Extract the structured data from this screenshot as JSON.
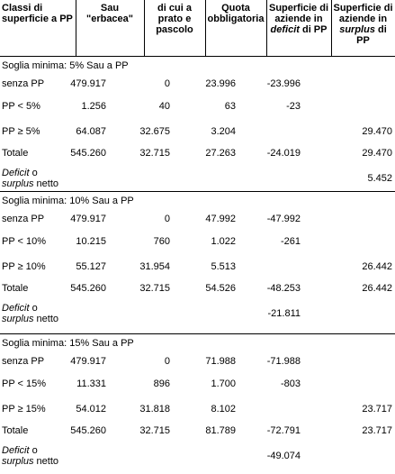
{
  "header": {
    "columns": [
      [
        {
          "text": "Classi di superficie a PP",
          "italic": false
        }
      ],
      [
        {
          "text": "Sau \"erbacea\"",
          "italic": false
        }
      ],
      [
        {
          "text": "di cui a prato e pascolo",
          "italic": false
        }
      ],
      [
        {
          "text": "Quota obbligatoria",
          "italic": false
        }
      ],
      [
        {
          "text": "Superficie di aziende in ",
          "italic": false
        },
        {
          "text": "deficit",
          "italic": true
        },
        {
          "text": " di PP",
          "italic": false
        }
      ],
      [
        {
          "text": "Superficie di aziende in ",
          "italic": false
        },
        {
          "text": "surplus",
          "italic": true
        },
        {
          "text": " di PP",
          "italic": false
        }
      ]
    ]
  },
  "sections": [
    {
      "title": "Soglia minima: 5% Sau a PP",
      "rows": [
        {
          "label": "senza PP",
          "values": [
            "479.917",
            "0",
            "23.996",
            "-23.996",
            null
          ]
        },
        {
          "label": "PP < 5%",
          "values": [
            "1.256",
            "40",
            "63",
            "-23",
            null
          ]
        },
        {
          "label": "PP ≥ 5%",
          "values": [
            "64.087",
            "32.675",
            "3.204",
            null,
            "29.470"
          ]
        },
        {
          "label": "Totale",
          "values": [
            "545.260",
            "32.715",
            "27.263",
            "-24.019",
            "29.470"
          ]
        }
      ],
      "net": {
        "label": [
          {
            "text": "Deficit",
            "italic": true
          },
          {
            "text": " o ",
            "italic": false
          },
          {
            "text": "surplus",
            "italic": true
          },
          {
            "text": " netto",
            "italic": false
          }
        ],
        "values": [
          null,
          null,
          null,
          null,
          "5.452"
        ]
      }
    },
    {
      "title": "Soglia minima: 10% Sau a PP",
      "rows": [
        {
          "label": "senza PP",
          "values": [
            "479.917",
            "0",
            "47.992",
            "-47.992",
            null
          ]
        },
        {
          "label": "PP < 10%",
          "values": [
            "10.215",
            "760",
            "1.022",
            "-261",
            null
          ]
        },
        {
          "label": "PP ≥ 10%",
          "values": [
            "55.127",
            "31.954",
            "5.513",
            null,
            "26.442"
          ]
        },
        {
          "label": "Totale",
          "values": [
            "545.260",
            "32.715",
            "54.526",
            "-48.253",
            "26.442"
          ]
        }
      ],
      "net": {
        "label": [
          {
            "text": "Deficit",
            "italic": true
          },
          {
            "text": " o ",
            "italic": false
          },
          {
            "text": "surplus",
            "italic": true
          },
          {
            "text": " netto",
            "italic": false
          }
        ],
        "values": [
          null,
          null,
          null,
          "-21.811",
          null
        ]
      }
    },
    {
      "title": "Soglia minima: 15% Sau a PP",
      "rows": [
        {
          "label": "senza PP",
          "values": [
            "479.917",
            "0",
            "71.988",
            "-71.988",
            null
          ]
        },
        {
          "label": "PP < 15%",
          "values": [
            "11.331",
            "896",
            "1.700",
            "-803",
            null
          ]
        },
        {
          "label": "PP ≥ 15%",
          "values": [
            "54.012",
            "31.818",
            "8.102",
            null,
            "23.717"
          ]
        },
        {
          "label": "Totale",
          "values": [
            "545.260",
            "32.715",
            "81.789",
            "-72.791",
            "23.717"
          ]
        }
      ],
      "net": {
        "label": [
          {
            "text": "Deficit",
            "italic": true
          },
          {
            "text": " o ",
            "italic": false
          },
          {
            "text": "surplus",
            "italic": true
          },
          {
            "text": " netto",
            "italic": false
          }
        ],
        "values": [
          null,
          null,
          null,
          "-49.074",
          null
        ]
      }
    }
  ]
}
